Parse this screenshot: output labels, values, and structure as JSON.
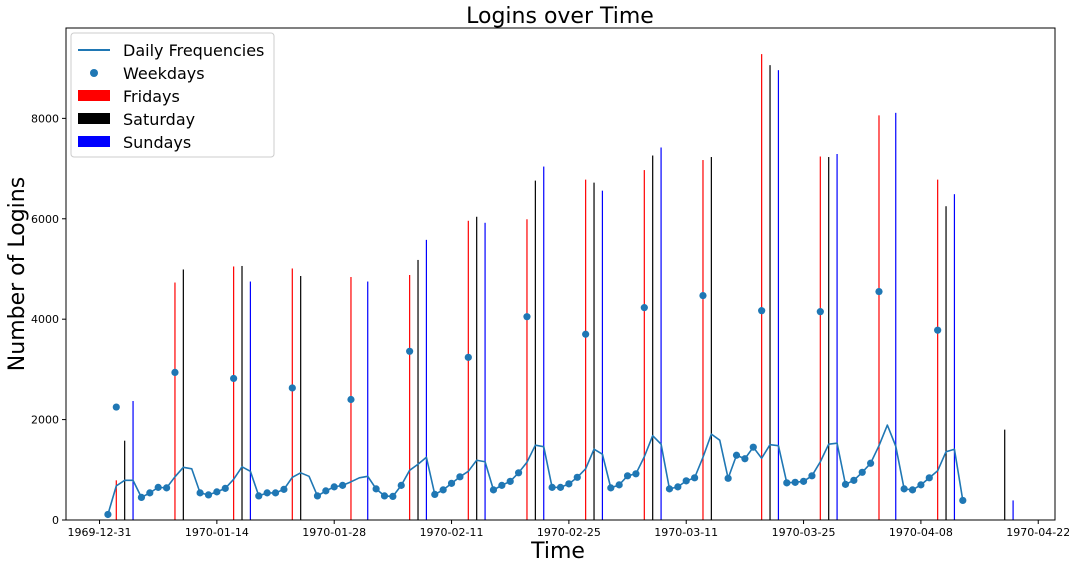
{
  "chart_data": {
    "type": "line",
    "title": "Logins over Time",
    "xlabel": "Time",
    "ylabel": "Number of Logins",
    "xlim": [
      "1969-12-27",
      "1970-04-24"
    ],
    "ylim": [
      0,
      9800
    ],
    "x_ticks": [
      "1969-12-31",
      "1970-01-14",
      "1970-01-28",
      "1970-02-11",
      "1970-02-25",
      "1970-03-11",
      "1970-03-25",
      "1970-04-08",
      "1970-04-22"
    ],
    "y_ticks": [
      0,
      2000,
      4000,
      6000,
      8000
    ],
    "grid": false,
    "legend": {
      "position": "top-left",
      "entries": [
        {
          "label": "Daily Frequencies",
          "kind": "line",
          "color": "#1f77b4"
        },
        {
          "label": "Weekdays",
          "kind": "marker",
          "color": "#1f77b4"
        },
        {
          "label": "Fridays",
          "kind": "patch",
          "color": "#ff0000"
        },
        {
          "label": "Saturday",
          "kind": "patch",
          "color": "#000000"
        },
        {
          "label": "Sundays",
          "kind": "patch",
          "color": "#0000ff"
        }
      ]
    },
    "series": [
      {
        "name": "Daily Frequencies",
        "kind": "line",
        "color": "#1f77b4",
        "x": [
          "1970-01-01",
          "1970-01-02",
          "1970-01-03",
          "1970-01-04",
          "1970-01-05",
          "1970-01-06",
          "1970-01-07",
          "1970-01-08",
          "1970-01-09",
          "1970-01-10",
          "1970-01-11",
          "1970-01-12",
          "1970-01-13",
          "1970-01-14",
          "1970-01-15",
          "1970-01-16",
          "1970-01-17",
          "1970-01-18",
          "1970-01-19",
          "1970-01-20",
          "1970-01-21",
          "1970-01-22",
          "1970-01-23",
          "1970-01-24",
          "1970-01-25",
          "1970-01-26",
          "1970-01-27",
          "1970-01-28",
          "1970-01-29",
          "1970-01-30",
          "1970-01-31",
          "1970-02-01",
          "1970-02-02",
          "1970-02-03",
          "1970-02-04",
          "1970-02-05",
          "1970-02-06",
          "1970-02-07",
          "1970-02-08",
          "1970-02-09",
          "1970-02-10",
          "1970-02-11",
          "1970-02-12",
          "1970-02-13",
          "1970-02-14",
          "1970-02-15",
          "1970-02-16",
          "1970-02-17",
          "1970-02-18",
          "1970-02-19",
          "1970-02-20",
          "1970-02-21",
          "1970-02-22",
          "1970-02-23",
          "1970-02-24",
          "1970-02-25",
          "1970-02-26",
          "1970-02-27",
          "1970-02-28",
          "1970-03-01",
          "1970-03-02",
          "1970-03-03",
          "1970-03-04",
          "1970-03-05",
          "1970-03-06",
          "1970-03-07",
          "1970-03-08",
          "1970-03-09",
          "1970-03-10",
          "1970-03-11",
          "1970-03-12",
          "1970-03-13",
          "1970-03-14",
          "1970-03-15",
          "1970-03-16",
          "1970-03-17",
          "1970-03-18",
          "1970-03-19",
          "1970-03-20",
          "1970-03-21",
          "1970-03-22",
          "1970-03-23",
          "1970-03-24",
          "1970-03-25",
          "1970-03-26",
          "1970-03-27",
          "1970-03-28",
          "1970-03-29",
          "1970-03-30",
          "1970-03-31",
          "1970-04-01",
          "1970-04-02",
          "1970-04-03",
          "1970-04-04",
          "1970-04-05",
          "1970-04-06",
          "1970-04-07",
          "1970-04-08",
          "1970-04-09",
          "1970-04-10",
          "1970-04-11",
          "1970-04-12",
          "1970-04-13"
        ],
        "y": [
          110,
          680,
          790,
          790,
          450,
          540,
          650,
          640,
          860,
          1050,
          1020,
          540,
          500,
          560,
          630,
          810,
          1060,
          970,
          480,
          540,
          540,
          610,
          850,
          940,
          870,
          480,
          580,
          660,
          690,
          760,
          840,
          870,
          620,
          480,
          470,
          690,
          990,
          1110,
          1250,
          510,
          600,
          730,
          860,
          970,
          1190,
          1160,
          600,
          690,
          770,
          940,
          1150,
          1490,
          1460,
          650,
          650,
          720,
          850,
          1020,
          1410,
          1310,
          640,
          700,
          880,
          920,
          1260,
          1680,
          1510,
          620,
          660,
          780,
          840,
          1250,
          1710,
          1590,
          830,
          1290,
          1220,
          1450,
          1230,
          1500,
          1480,
          740,
          750,
          770,
          880,
          1160,
          1510,
          1530,
          710,
          790,
          950,
          1130,
          1480,
          1890,
          1470,
          620,
          600,
          700,
          840,
          980,
          1360,
          1410,
          390
        ]
      },
      {
        "name": "Weekdays",
        "kind": "scatter",
        "color": "#1f77b4",
        "x": [
          "1970-01-01",
          "1970-01-02",
          "1970-01-05",
          "1970-01-06",
          "1970-01-07",
          "1970-01-08",
          "1970-01-09",
          "1970-01-12",
          "1970-01-13",
          "1970-01-14",
          "1970-01-15",
          "1970-01-16",
          "1970-01-19",
          "1970-01-20",
          "1970-01-21",
          "1970-01-22",
          "1970-01-23",
          "1970-01-26",
          "1970-01-27",
          "1970-01-28",
          "1970-01-29",
          "1970-01-30",
          "1970-02-02",
          "1970-02-03",
          "1970-02-04",
          "1970-02-05",
          "1970-02-06",
          "1970-02-09",
          "1970-02-10",
          "1970-02-11",
          "1970-02-12",
          "1970-02-13",
          "1970-02-16",
          "1970-02-17",
          "1970-02-18",
          "1970-02-19",
          "1970-02-20",
          "1970-02-23",
          "1970-02-24",
          "1970-02-25",
          "1970-02-26",
          "1970-02-27",
          "1970-03-02",
          "1970-03-03",
          "1970-03-04",
          "1970-03-05",
          "1970-03-06",
          "1970-03-09",
          "1970-03-10",
          "1970-03-11",
          "1970-03-12",
          "1970-03-13",
          "1970-03-16",
          "1970-03-17",
          "1970-03-18",
          "1970-03-19",
          "1970-03-20",
          "1970-03-23",
          "1970-03-24",
          "1970-03-25",
          "1970-03-26",
          "1970-03-27",
          "1970-03-30",
          "1970-03-31",
          "1970-04-01",
          "1970-04-02",
          "1970-04-03",
          "1970-04-06",
          "1970-04-07",
          "1970-04-08",
          "1970-04-09",
          "1970-04-10",
          "1970-04-13"
        ],
        "y": [
          110,
          2250,
          450,
          540,
          650,
          640,
          2940,
          540,
          500,
          560,
          630,
          2820,
          480,
          540,
          540,
          610,
          2630,
          480,
          580,
          660,
          690,
          2400,
          620,
          480,
          470,
          690,
          3360,
          510,
          600,
          730,
          860,
          3240,
          600,
          690,
          770,
          940,
          4050,
          650,
          650,
          720,
          850,
          3700,
          640,
          700,
          880,
          920,
          4230,
          620,
          660,
          780,
          840,
          4470,
          830,
          1290,
          1220,
          1450,
          4170,
          740,
          750,
          770,
          880,
          4150,
          710,
          790,
          950,
          1130,
          4550,
          620,
          600,
          700,
          840,
          3780,
          390
        ]
      },
      {
        "name": "Fridays",
        "kind": "bar",
        "color": "#ff0000",
        "x": [
          "1970-01-02",
          "1970-01-09",
          "1970-01-16",
          "1970-01-23",
          "1970-01-30",
          "1970-02-06",
          "1970-02-13",
          "1970-02-20",
          "1970-02-27",
          "1970-03-06",
          "1970-03-13",
          "1970-03-20",
          "1970-03-27",
          "1970-04-03",
          "1970-04-10"
        ],
        "y": [
          790,
          4730,
          5050,
          5010,
          4840,
          4880,
          5960,
          5990,
          6780,
          6970,
          7170,
          9280,
          7240,
          8060,
          6780
        ]
      },
      {
        "name": "Saturday",
        "kind": "bar",
        "color": "#000000",
        "x": [
          "1970-01-03",
          "1970-01-10",
          "1970-01-17",
          "1970-01-24",
          "1970-01-31",
          "1970-02-07",
          "1970-02-14",
          "1970-02-21",
          "1970-02-28",
          "1970-03-07",
          "1970-03-14",
          "1970-03-21",
          "1970-03-28",
          "1970-04-04",
          "1970-04-11",
          "1970-04-18"
        ],
        "y": [
          1580,
          4990,
          5060,
          4860,
          0,
          5180,
          6040,
          6760,
          6720,
          7260,
          7230,
          9060,
          7230,
          0,
          6250,
          1800
        ]
      },
      {
        "name": "Sundays",
        "kind": "bar",
        "color": "#0000ff",
        "x": [
          "1970-01-04",
          "1970-01-11",
          "1970-01-18",
          "1970-01-25",
          "1970-02-01",
          "1970-02-08",
          "1970-02-15",
          "1970-02-22",
          "1970-03-01",
          "1970-03-08",
          "1970-03-15",
          "1970-03-22",
          "1970-03-29",
          "1970-04-05",
          "1970-04-12",
          "1970-04-19"
        ],
        "y": [
          2370,
          0,
          4750,
          0,
          4750,
          5580,
          5920,
          7040,
          6560,
          7420,
          0,
          8960,
          7290,
          8110,
          6490,
          390
        ]
      }
    ]
  }
}
